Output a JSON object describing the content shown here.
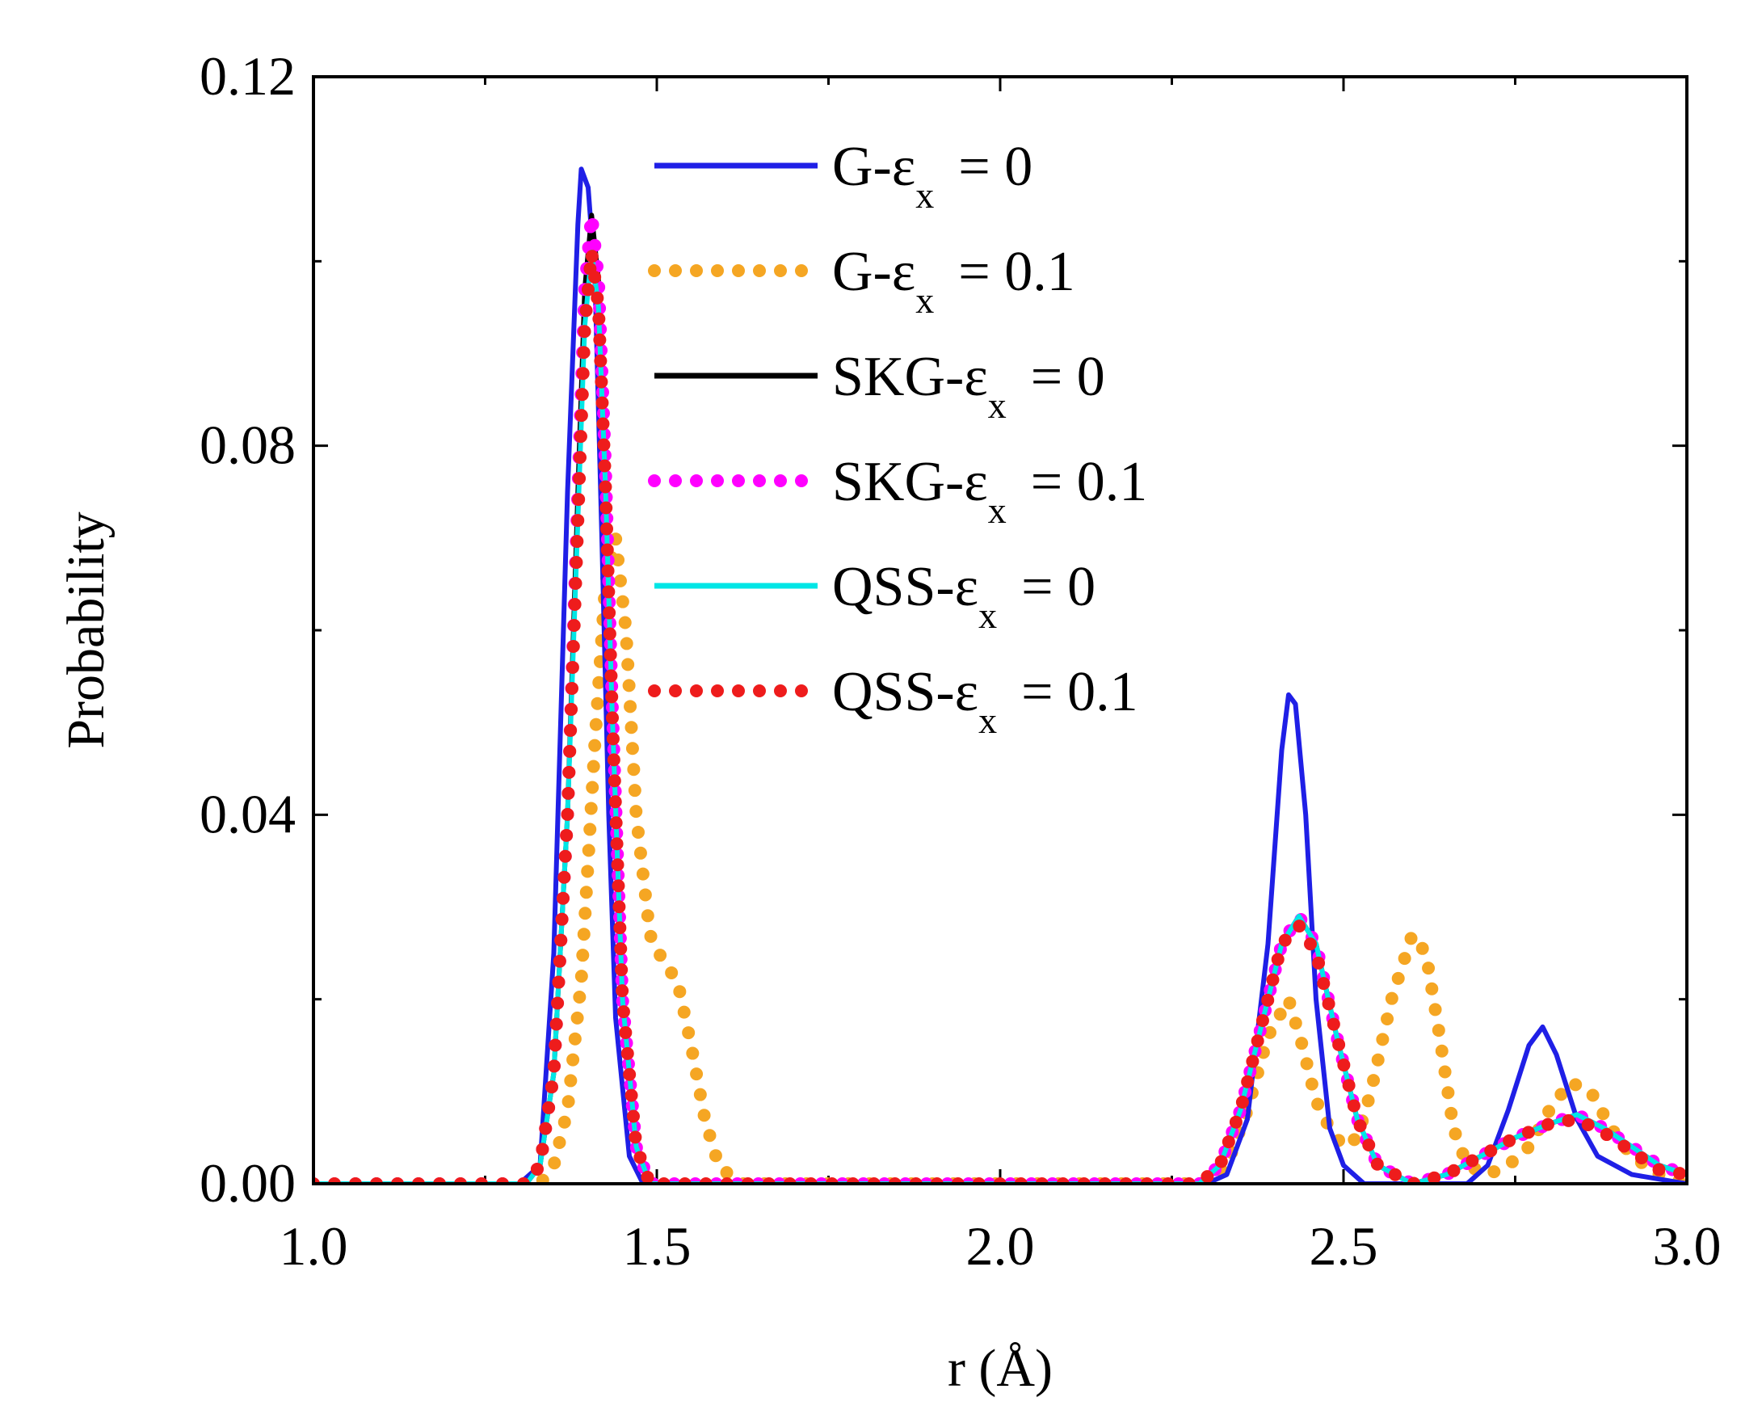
{
  "chart_data": {
    "type": "line",
    "title": "",
    "xlabel": "r (Å)",
    "ylabel": "Probability",
    "xlim": [
      1.0,
      3.0
    ],
    "ylim": [
      0.0,
      0.12
    ],
    "xticks": [
      1.0,
      1.5,
      2.0,
      2.5,
      3.0
    ],
    "xtick_labels": [
      "1.0",
      "1.5",
      "2.0",
      "2.5",
      "3.0"
    ],
    "yticks": [
      0.0,
      0.04,
      0.08,
      0.12
    ],
    "ytick_labels": [
      "0.00",
      "0.04",
      "0.08",
      "0.12"
    ],
    "legend_position": "top-center",
    "series": [
      {
        "name": "G-εx = 0",
        "legend_prefix": "G-ε",
        "legend_sub": "x",
        "legend_suffix": "= 0",
        "color": "#1f1fe6",
        "style": "solid",
        "points": [
          [
            1.0,
            0
          ],
          [
            1.3,
            0
          ],
          [
            1.33,
            0.002
          ],
          [
            1.35,
            0.025
          ],
          [
            1.37,
            0.075
          ],
          [
            1.385,
            0.104
          ],
          [
            1.39,
            0.11
          ],
          [
            1.4,
            0.108
          ],
          [
            1.41,
            0.098
          ],
          [
            1.42,
            0.07
          ],
          [
            1.43,
            0.04
          ],
          [
            1.44,
            0.018
          ],
          [
            1.46,
            0.003
          ],
          [
            1.48,
            0
          ],
          [
            2.3,
            0
          ],
          [
            2.33,
            0.001
          ],
          [
            2.36,
            0.007
          ],
          [
            2.39,
            0.026
          ],
          [
            2.41,
            0.047
          ],
          [
            2.42,
            0.053
          ],
          [
            2.43,
            0.052
          ],
          [
            2.445,
            0.04
          ],
          [
            2.46,
            0.02
          ],
          [
            2.48,
            0.006
          ],
          [
            2.5,
            0.002
          ],
          [
            2.53,
            0
          ],
          [
            2.68,
            0
          ],
          [
            2.71,
            0.002
          ],
          [
            2.74,
            0.008
          ],
          [
            2.77,
            0.015
          ],
          [
            2.79,
            0.017
          ],
          [
            2.81,
            0.014
          ],
          [
            2.84,
            0.007
          ],
          [
            2.87,
            0.003
          ],
          [
            2.92,
            0.001
          ],
          [
            3.0,
            0
          ]
        ]
      },
      {
        "name": "G-εx = 0.1",
        "legend_prefix": "G-ε",
        "legend_sub": "x",
        "legend_suffix": "= 0.1",
        "color": "#f5a623",
        "style": "dotted",
        "points": [
          [
            1.0,
            0
          ],
          [
            1.33,
            0
          ],
          [
            1.35,
            0.002
          ],
          [
            1.37,
            0.008
          ],
          [
            1.39,
            0.022
          ],
          [
            1.41,
            0.048
          ],
          [
            1.425,
            0.065
          ],
          [
            1.44,
            0.07
          ],
          [
            1.455,
            0.06
          ],
          [
            1.47,
            0.04
          ],
          [
            1.49,
            0.027
          ],
          [
            1.51,
            0.024
          ],
          [
            1.53,
            0.022
          ],
          [
            1.55,
            0.015
          ],
          [
            1.57,
            0.007
          ],
          [
            1.59,
            0.002
          ],
          [
            1.62,
            0
          ],
          [
            2.3,
            0
          ],
          [
            2.33,
            0.002
          ],
          [
            2.36,
            0.008
          ],
          [
            2.39,
            0.016
          ],
          [
            2.42,
            0.02
          ],
          [
            2.44,
            0.015
          ],
          [
            2.46,
            0.009
          ],
          [
            2.48,
            0.006
          ],
          [
            2.5,
            0.004
          ],
          [
            2.52,
            0.005
          ],
          [
            2.54,
            0.01
          ],
          [
            2.57,
            0.02
          ],
          [
            2.6,
            0.027
          ],
          [
            2.62,
            0.025
          ],
          [
            2.64,
            0.016
          ],
          [
            2.66,
            0.006
          ],
          [
            2.68,
            0.002
          ],
          [
            2.71,
            0.001
          ],
          [
            2.74,
            0.002
          ],
          [
            2.77,
            0.004
          ],
          [
            2.8,
            0.008
          ],
          [
            2.83,
            0.011
          ],
          [
            2.86,
            0.01
          ],
          [
            2.89,
            0.006
          ],
          [
            2.92,
            0.003
          ],
          [
            2.96,
            0.001
          ],
          [
            3.0,
            0
          ]
        ]
      },
      {
        "name": "SKG-εx = 0",
        "legend_prefix": "SKG-ε",
        "legend_sub": "x",
        "legend_suffix": "= 0",
        "color": "#000000",
        "style": "solid",
        "points": [
          [
            1.0,
            0
          ],
          [
            1.31,
            0
          ],
          [
            1.33,
            0.002
          ],
          [
            1.35,
            0.012
          ],
          [
            1.37,
            0.04
          ],
          [
            1.385,
            0.075
          ],
          [
            1.395,
            0.097
          ],
          [
            1.405,
            0.105
          ],
          [
            1.415,
            0.098
          ],
          [
            1.425,
            0.078
          ],
          [
            1.435,
            0.052
          ],
          [
            1.45,
            0.02
          ],
          [
            1.47,
            0.004
          ],
          [
            1.49,
            0
          ],
          [
            2.29,
            0
          ],
          [
            2.32,
            0.002
          ],
          [
            2.35,
            0.008
          ],
          [
            2.38,
            0.017
          ],
          [
            2.41,
            0.026
          ],
          [
            2.435,
            0.029
          ],
          [
            2.46,
            0.026
          ],
          [
            2.49,
            0.016
          ],
          [
            2.52,
            0.007
          ],
          [
            2.55,
            0.002
          ],
          [
            2.6,
            0
          ],
          [
            2.65,
            0.001
          ],
          [
            2.7,
            0.003
          ],
          [
            2.75,
            0.005
          ],
          [
            2.8,
            0.0065
          ],
          [
            2.84,
            0.0075
          ],
          [
            2.88,
            0.006
          ],
          [
            2.92,
            0.004
          ],
          [
            2.96,
            0.002
          ],
          [
            3.0,
            0.001
          ]
        ]
      },
      {
        "name": "SKG-εx = 0.1",
        "legend_prefix": "SKG-ε",
        "legend_sub": "x",
        "legend_suffix": "= 0.1",
        "color": "#ff00ff",
        "style": "dotted",
        "points": [
          [
            1.0,
            0
          ],
          [
            1.31,
            0
          ],
          [
            1.33,
            0.002
          ],
          [
            1.35,
            0.012
          ],
          [
            1.37,
            0.04
          ],
          [
            1.385,
            0.075
          ],
          [
            1.395,
            0.097
          ],
          [
            1.405,
            0.105
          ],
          [
            1.415,
            0.098
          ],
          [
            1.425,
            0.078
          ],
          [
            1.435,
            0.052
          ],
          [
            1.45,
            0.02
          ],
          [
            1.47,
            0.004
          ],
          [
            1.49,
            0
          ],
          [
            2.29,
            0
          ],
          [
            2.32,
            0.002
          ],
          [
            2.35,
            0.008
          ],
          [
            2.38,
            0.017
          ],
          [
            2.41,
            0.026
          ],
          [
            2.435,
            0.029
          ],
          [
            2.46,
            0.026
          ],
          [
            2.49,
            0.016
          ],
          [
            2.52,
            0.007
          ],
          [
            2.55,
            0.002
          ],
          [
            2.6,
            0
          ],
          [
            2.65,
            0.001
          ],
          [
            2.7,
            0.003
          ],
          [
            2.75,
            0.005
          ],
          [
            2.8,
            0.0065
          ],
          [
            2.84,
            0.0075
          ],
          [
            2.88,
            0.006
          ],
          [
            2.92,
            0.004
          ],
          [
            2.96,
            0.002
          ],
          [
            3.0,
            0.001
          ]
        ]
      },
      {
        "name": "QSS-εx = 0",
        "legend_prefix": "QSS-ε",
        "legend_sub": "x",
        "legend_suffix": "= 0",
        "color": "#00e6e6",
        "style": "solid",
        "points": [
          [
            1.0,
            0
          ],
          [
            1.31,
            0
          ],
          [
            1.33,
            0.002
          ],
          [
            1.35,
            0.012
          ],
          [
            1.37,
            0.04
          ],
          [
            1.385,
            0.072
          ],
          [
            1.395,
            0.093
          ],
          [
            1.405,
            0.101
          ],
          [
            1.415,
            0.095
          ],
          [
            1.425,
            0.076
          ],
          [
            1.435,
            0.051
          ],
          [
            1.45,
            0.02
          ],
          [
            1.47,
            0.004
          ],
          [
            1.49,
            0
          ],
          [
            2.29,
            0
          ],
          [
            2.32,
            0.002
          ],
          [
            2.35,
            0.008
          ],
          [
            2.38,
            0.017
          ],
          [
            2.41,
            0.026
          ],
          [
            2.435,
            0.029
          ],
          [
            2.46,
            0.026
          ],
          [
            2.49,
            0.016
          ],
          [
            2.52,
            0.007
          ],
          [
            2.55,
            0.002
          ],
          [
            2.6,
            0
          ],
          [
            2.65,
            0.001
          ],
          [
            2.7,
            0.003
          ],
          [
            2.75,
            0.005
          ],
          [
            2.8,
            0.0065
          ],
          [
            2.84,
            0.0075
          ],
          [
            2.88,
            0.006
          ],
          [
            2.92,
            0.004
          ],
          [
            2.96,
            0.002
          ],
          [
            3.0,
            0.001
          ]
        ]
      },
      {
        "name": "QSS-εx = 0.1",
        "legend_prefix": "QSS-ε",
        "legend_sub": "x",
        "legend_suffix": "= 0.1",
        "color": "#ee1c1c",
        "style": "dotted",
        "points": [
          [
            1.0,
            0
          ],
          [
            1.31,
            0
          ],
          [
            1.33,
            0.002
          ],
          [
            1.35,
            0.012
          ],
          [
            1.37,
            0.04
          ],
          [
            1.385,
            0.072
          ],
          [
            1.395,
            0.093
          ],
          [
            1.405,
            0.101
          ],
          [
            1.415,
            0.095
          ],
          [
            1.425,
            0.076
          ],
          [
            1.435,
            0.051
          ],
          [
            1.45,
            0.02
          ],
          [
            1.47,
            0.004
          ],
          [
            1.49,
            0
          ],
          [
            2.29,
            0
          ],
          [
            2.32,
            0.002
          ],
          [
            2.35,
            0.008
          ],
          [
            2.38,
            0.017
          ],
          [
            2.41,
            0.026
          ],
          [
            2.435,
            0.028
          ],
          [
            2.46,
            0.025
          ],
          [
            2.49,
            0.016
          ],
          [
            2.52,
            0.007
          ],
          [
            2.55,
            0.002
          ],
          [
            2.6,
            0
          ],
          [
            2.65,
            0.001
          ],
          [
            2.7,
            0.003
          ],
          [
            2.75,
            0.005
          ],
          [
            2.8,
            0.0065
          ],
          [
            2.84,
            0.007
          ],
          [
            2.88,
            0.0055
          ],
          [
            2.92,
            0.0035
          ],
          [
            2.96,
            0.0015
          ],
          [
            3.0,
            0.001
          ]
        ]
      }
    ]
  }
}
